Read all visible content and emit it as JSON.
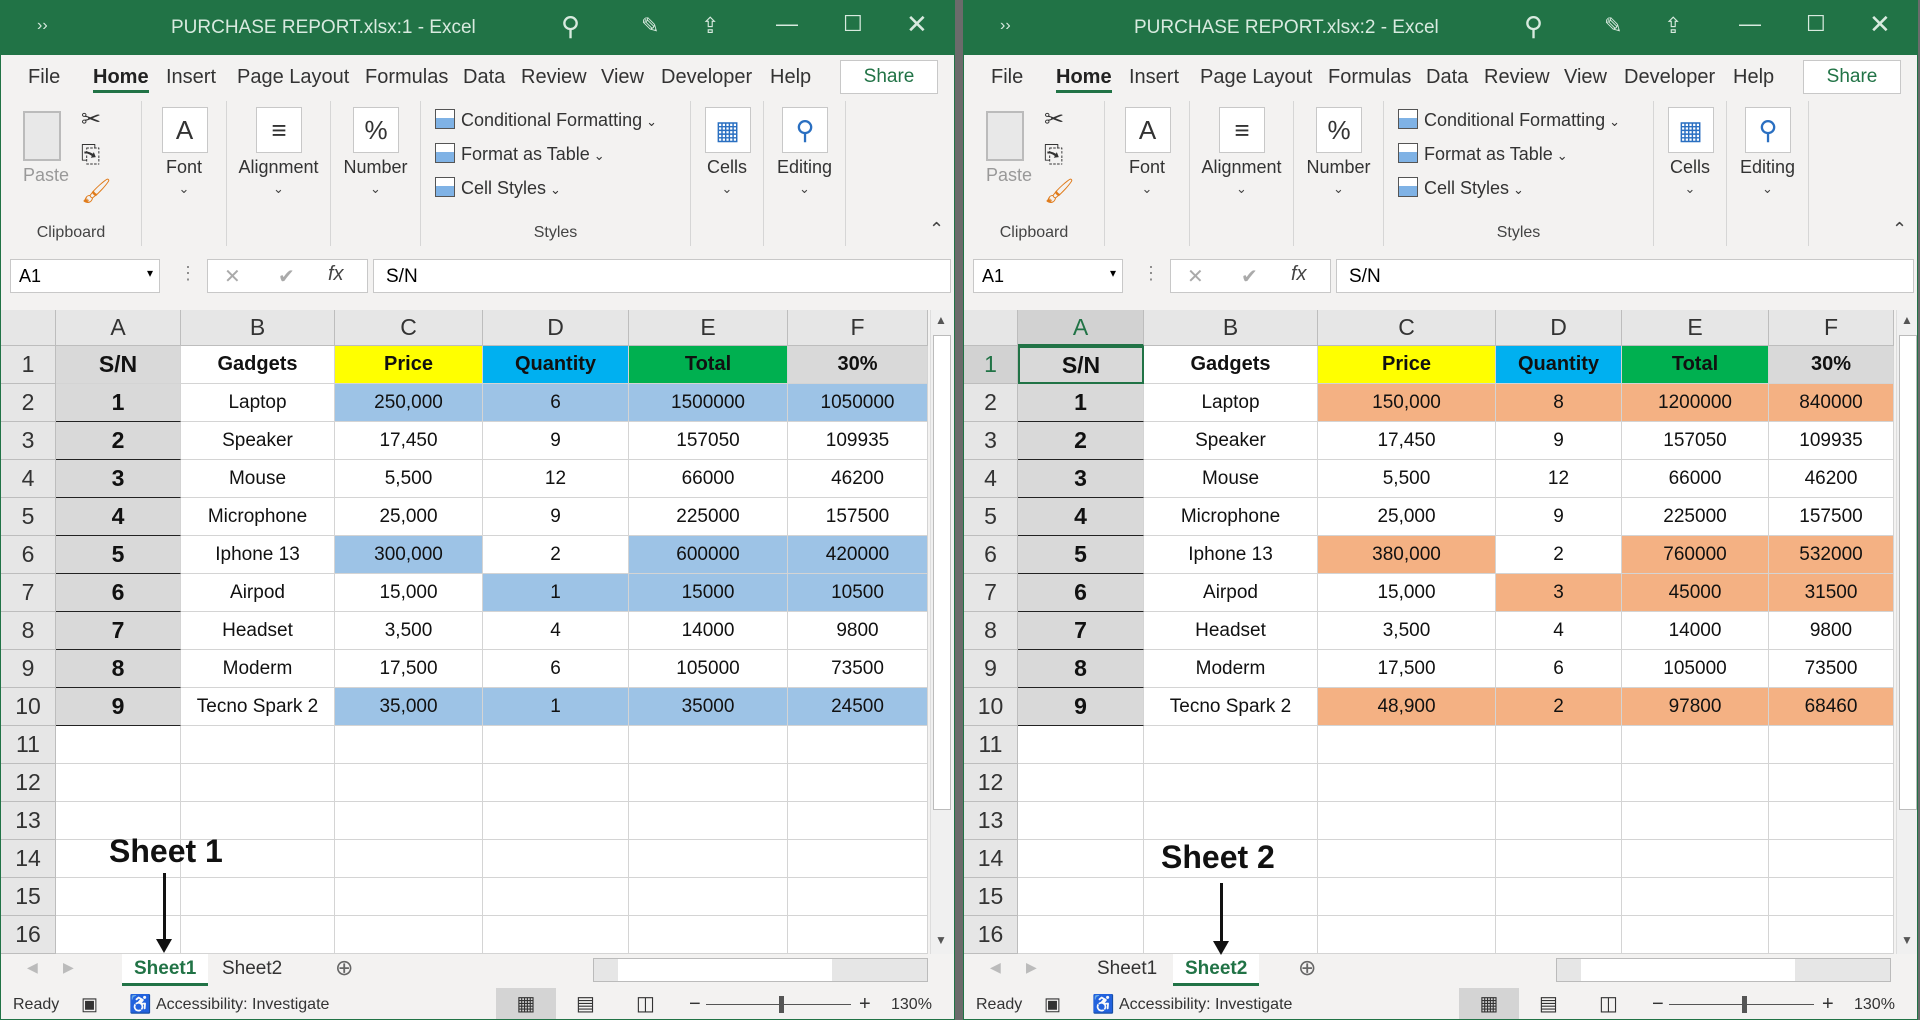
{
  "ribbon": {
    "tabs": [
      "File",
      "Home",
      "Insert",
      "Page Layout",
      "Formulas",
      "Data",
      "Review",
      "View",
      "Developer",
      "Help"
    ],
    "active_tab": "Home",
    "share": "Share",
    "paste": "Paste",
    "groups": {
      "clipboard": "Clipboard",
      "font": "Font",
      "alignment": "Alignment",
      "number": "Number",
      "styles": "Styles",
      "cells": "Cells",
      "editing": "Editing"
    },
    "styles_items": [
      "Conditional Formatting",
      "Format as Table",
      "Cell Styles"
    ]
  },
  "columns": [
    "A",
    "B",
    "C",
    "D",
    "E",
    "F"
  ],
  "header_colors": {
    "A": "#d9d9d9",
    "B": "#ffffff",
    "C": "#ffff00",
    "D": "#00b0f0",
    "E": "#00b050",
    "F": "#d9d9d9"
  },
  "status": {
    "ready": "Ready",
    "accessibility": "Accessibility: Investigate",
    "zoom": "130%"
  },
  "windows": [
    {
      "title": "PURCHASE REPORT.xlsx:1  -  Excel",
      "name_box": "A1",
      "formula": "S/N",
      "sheets": [
        "Sheet1",
        "Sheet2"
      ],
      "active_sheet": "Sheet1",
      "highlight_color": "#9dc3e6",
      "annotation": "Sheet 1",
      "highlighted_cells": [
        "C2",
        "D2",
        "E2",
        "F2",
        "C6",
        "E6",
        "F6",
        "D7",
        "E7",
        "F7",
        "C10",
        "D10",
        "E10",
        "F10"
      ],
      "rows": [
        [
          "S/N",
          "Gadgets",
          "Price",
          "Quantity",
          "Total",
          "30%"
        ],
        [
          "1",
          "Laptop",
          "250,000",
          "6",
          "1500000",
          "1050000"
        ],
        [
          "2",
          "Speaker",
          "17,450",
          "9",
          "157050",
          "109935"
        ],
        [
          "3",
          "Mouse",
          "5,500",
          "12",
          "66000",
          "46200"
        ],
        [
          "4",
          "Microphone",
          "25,000",
          "9",
          "225000",
          "157500"
        ],
        [
          "5",
          "Iphone 13",
          "300,000",
          "2",
          "600000",
          "420000"
        ],
        [
          "6",
          "Airpod",
          "15,000",
          "1",
          "15000",
          "10500"
        ],
        [
          "7",
          "Headset",
          "3,500",
          "4",
          "14000",
          "9800"
        ],
        [
          "8",
          "Moderm",
          "17,500",
          "6",
          "105000",
          "73500"
        ],
        [
          "9",
          "Tecno Spark 2",
          "35,000",
          "1",
          "35000",
          "24500"
        ]
      ]
    },
    {
      "title": "PURCHASE REPORT.xlsx:2  -  Excel",
      "name_box": "A1",
      "formula": "S/N",
      "sheets": [
        "Sheet1",
        "Sheet2"
      ],
      "active_sheet": "Sheet2",
      "highlight_color": "#f4b183",
      "annotation": "Sheet 2",
      "selected_cell": "A1",
      "highlighted_cells": [
        "C2",
        "D2",
        "E2",
        "F2",
        "C6",
        "E6",
        "F6",
        "D7",
        "E7",
        "F7",
        "C10",
        "D10",
        "E10",
        "F10"
      ],
      "rows": [
        [
          "S/N",
          "Gadgets",
          "Price",
          "Quantity",
          "Total",
          "30%"
        ],
        [
          "1",
          "Laptop",
          "150,000",
          "8",
          "1200000",
          "840000"
        ],
        [
          "2",
          "Speaker",
          "17,450",
          "9",
          "157050",
          "109935"
        ],
        [
          "3",
          "Mouse",
          "5,500",
          "12",
          "66000",
          "46200"
        ],
        [
          "4",
          "Microphone",
          "25,000",
          "9",
          "225000",
          "157500"
        ],
        [
          "5",
          "Iphone 13",
          "380,000",
          "2",
          "760000",
          "532000"
        ],
        [
          "6",
          "Airpod",
          "15,000",
          "3",
          "45000",
          "31500"
        ],
        [
          "7",
          "Headset",
          "3,500",
          "4",
          "14000",
          "9800"
        ],
        [
          "8",
          "Moderm",
          "17,500",
          "6",
          "105000",
          "73500"
        ],
        [
          "9",
          "Tecno Spark 2",
          "48,900",
          "2",
          "97800",
          "68460"
        ]
      ]
    }
  ]
}
